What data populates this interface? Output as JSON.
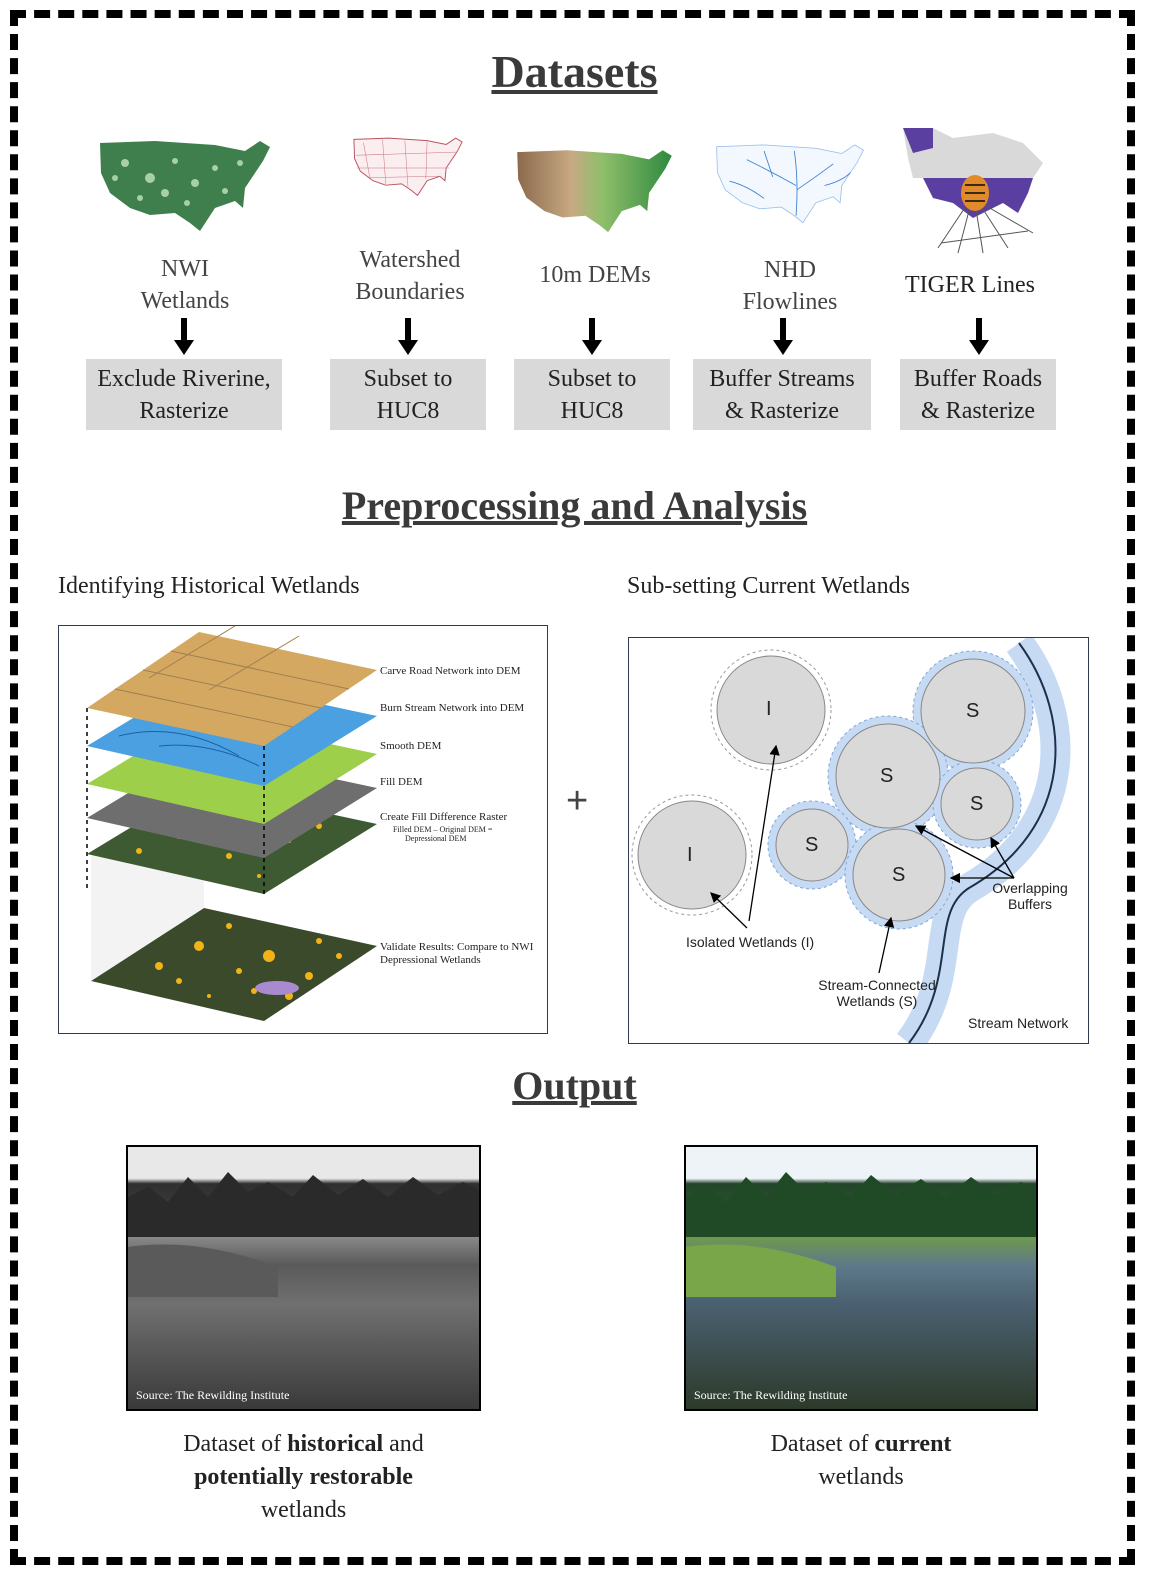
{
  "sections": {
    "datasets": "Datasets",
    "preprocessing": "Preprocessing and Analysis",
    "output": "Output"
  },
  "datasets": [
    {
      "name_line1": "NWI",
      "name_line2": "Wetlands",
      "step_line1": "Exclude Riverine,",
      "step_line2": "Rasterize"
    },
    {
      "name_line1": "Watershed",
      "name_line2": "Boundaries",
      "step_line1": "Subset to",
      "step_line2": "HUC8"
    },
    {
      "name_line1": "10m DEMs",
      "name_line2": "",
      "step_line1": "Subset to",
      "step_line2": "HUC8"
    },
    {
      "name_line1": "NHD",
      "name_line2": "Flowlines",
      "step_line1": "Buffer Streams",
      "step_line2": "& Rasterize"
    },
    {
      "name_line1": "TIGER Lines",
      "name_line2": "",
      "step_line1": "Buffer Roads",
      "step_line2": "& Rasterize"
    }
  ],
  "historical": {
    "title": "Identifying Historical Wetlands",
    "layers": [
      "Carve Road Network into DEM",
      "Burn Stream Network into DEM",
      "Smooth DEM",
      "Fill DEM",
      "Create Fill Difference Raster"
    ],
    "formula_line1": "Filled DEM – Original DEM =",
    "formula_line2": "Depressional DEM",
    "validate_line1": "Validate Results: Compare to NWI",
    "validate_line2": "Depressional Wetlands"
  },
  "plus": "+",
  "current": {
    "title": "Sub-setting Current Wetlands",
    "isolated_letter": "I",
    "stream_letter": "S",
    "isolated_label": "Isolated Wetlands (I)",
    "stream_label_line1": "Stream-Connected",
    "stream_label_line2": "Wetlands (S)",
    "overlap_line1": "Overlapping",
    "overlap_line2": "Buffers",
    "network_label": "Stream Network"
  },
  "output": {
    "source_left": "Source: The Rewilding Institute",
    "source_right": "Source: The Rewilding Institute",
    "left_caption": {
      "p1": "Dataset of ",
      "b1": "historical",
      "p2": " and",
      "b2": "potentially restorable",
      "p3": "wetlands"
    },
    "right_caption": {
      "p1": "Dataset of ",
      "b1": "current",
      "p2": "wetlands"
    }
  },
  "colors": {
    "grey_box": "#d9d9d9",
    "nwi_green": "#3f7f4d",
    "watershed_red": "#b8545e",
    "nhd_blue": "#3b7fd0",
    "tiger_purple": "#5b3fa0",
    "wetland_yellow": "#f2b318",
    "circle_grey": "#d9d9d9",
    "buffer_blue": "#c6daf3"
  }
}
